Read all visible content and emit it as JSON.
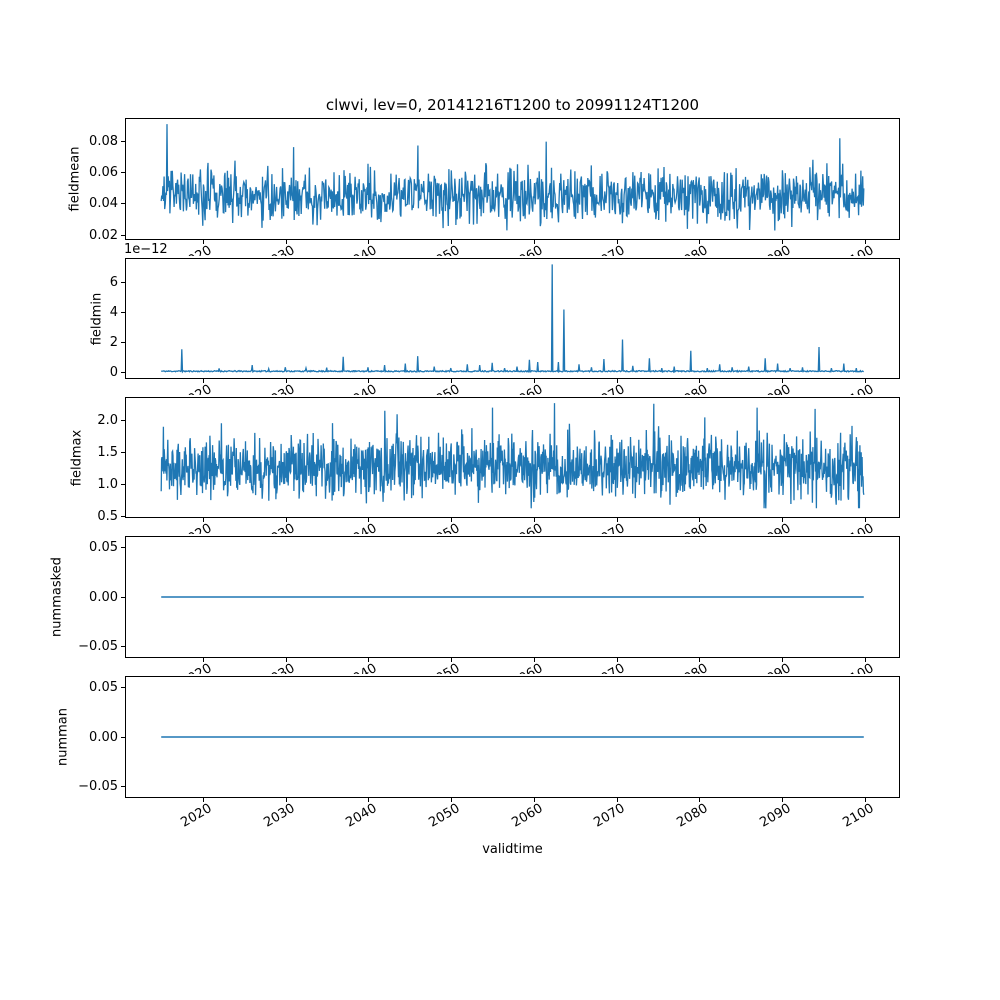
{
  "figure": {
    "title": "clwvi, lev=0, 20141216T1200 to 20991124T1200",
    "xlabel": "validtime",
    "background": "#ffffff",
    "line_color": "#1f77b4",
    "axis_color": "#000000"
  },
  "x_axis": {
    "lim": [
      2010.71,
      2104.15
    ],
    "ticks": [
      2020,
      2030,
      2040,
      2050,
      2060,
      2070,
      2080,
      2090,
      2100
    ],
    "tick_labels": [
      "2020",
      "2030",
      "2040",
      "2050",
      "2060",
      "2070",
      "2080",
      "2090",
      "2100"
    ],
    "tick_label_rotation_deg": 30,
    "data_start_year": 2014.96,
    "data_end_year": 2099.9
  },
  "chart_data": [
    {
      "type": "line",
      "name": "fieldmean",
      "ylabel": "fieldmean",
      "yticks": [
        0.02,
        0.04,
        0.06,
        0.08
      ],
      "ytick_labels": [
        "0.02",
        "0.04",
        "0.06",
        "0.08"
      ],
      "ylim": [
        0.0175,
        0.0945
      ],
      "offset_text": "",
      "series": {
        "kind": "noise",
        "n": 1200,
        "seed": 7,
        "mean": 0.0455,
        "sigma": 0.0085,
        "min": 0.0215,
        "max": 0.0915,
        "spike_prob": 0.02,
        "spike_scale": 0.013,
        "dip_scale": 0.007,
        "peaks": [
          [
            2015.7,
            0.0912
          ],
          [
            2061.5,
            0.08
          ],
          [
            2097.0,
            0.0822
          ],
          [
            2046.0,
            0.0775
          ],
          [
            2031.0,
            0.0765
          ]
        ]
      }
    },
    {
      "type": "line",
      "name": "fieldmin",
      "ylabel": "fieldmin",
      "yticks": [
        0,
        2,
        4,
        6
      ],
      "ytick_labels": [
        "0",
        "2",
        "4",
        "6"
      ],
      "ylim": [
        -0.36,
        7.56
      ],
      "offset_text": "1e−12",
      "value_scale_note": "values in 1e-12 units",
      "series": {
        "kind": "baseline_spikes",
        "n": 1020,
        "seed": 11,
        "baseline": 0.05,
        "jitter": 0.08,
        "spikes": [
          [
            2017.5,
            1.55
          ],
          [
            2022,
            0.28
          ],
          [
            2026,
            0.5
          ],
          [
            2028,
            0.25
          ],
          [
            2030,
            0.35
          ],
          [
            2032.5,
            0.3
          ],
          [
            2035,
            0.33
          ],
          [
            2037,
            1.05
          ],
          [
            2040,
            0.35
          ],
          [
            2042,
            0.5
          ],
          [
            2044.5,
            0.6
          ],
          [
            2046,
            1.1
          ],
          [
            2048,
            0.4
          ],
          [
            2050,
            0.3
          ],
          [
            2052,
            0.55
          ],
          [
            2053.5,
            0.5
          ],
          [
            2055,
            0.65
          ],
          [
            2056.5,
            0.3
          ],
          [
            2058,
            0.4
          ],
          [
            2059.5,
            0.85
          ],
          [
            2060.5,
            0.7
          ],
          [
            2062.2,
            7.2
          ],
          [
            2063,
            0.7
          ],
          [
            2063.6,
            4.2
          ],
          [
            2065.5,
            0.55
          ],
          [
            2067,
            0.35
          ],
          [
            2068.5,
            0.9
          ],
          [
            2070.7,
            2.2
          ],
          [
            2072,
            0.45
          ],
          [
            2074,
            0.95
          ],
          [
            2075.5,
            0.3
          ],
          [
            2077,
            0.4
          ],
          [
            2079,
            1.45
          ],
          [
            2081,
            0.3
          ],
          [
            2082.5,
            0.55
          ],
          [
            2084,
            0.35
          ],
          [
            2086,
            0.4
          ],
          [
            2088,
            0.95
          ],
          [
            2089.5,
            0.6
          ],
          [
            2091,
            0.3
          ],
          [
            2092.5,
            0.35
          ],
          [
            2094.5,
            1.7
          ],
          [
            2096,
            0.3
          ],
          [
            2097.5,
            0.6
          ],
          [
            2099,
            0.3
          ]
        ]
      }
    },
    {
      "type": "line",
      "name": "fieldmax",
      "ylabel": "fieldmax",
      "yticks": [
        0.5,
        1.0,
        1.5,
        2.0
      ],
      "ytick_labels": [
        "0.5",
        "1.0",
        "1.5",
        "2.0"
      ],
      "ylim": [
        0.495,
        2.35
      ],
      "offset_text": "",
      "series": {
        "kind": "noise",
        "n": 1600,
        "seed": 23,
        "mean": 1.27,
        "sigma": 0.24,
        "min": 0.63,
        "max": 2.27,
        "spike_prob": 0.03,
        "spike_scale": 0.35,
        "dip_scale": 0.18,
        "peaks": [
          [
            2042,
            2.15
          ],
          [
            2055,
            2.2
          ],
          [
            2062.5,
            2.27
          ],
          [
            2074.5,
            2.26
          ],
          [
            2087,
            2.2
          ],
          [
            2094,
            2.18
          ]
        ]
      }
    },
    {
      "type": "line",
      "name": "nummasked",
      "ylabel": "nummasked",
      "yticks": [
        -0.05,
        0,
        0.05
      ],
      "ytick_labels": [
        "−0.05",
        "0.00",
        "0.05"
      ],
      "ylim": [
        -0.0605,
        0.0605
      ],
      "offset_text": "",
      "series": {
        "kind": "constant",
        "value": 0
      }
    },
    {
      "type": "line",
      "name": "numman",
      "ylabel": "numman",
      "yticks": [
        -0.05,
        0,
        0.05
      ],
      "ytick_labels": [
        "−0.05",
        "0.00",
        "0.05"
      ],
      "ylim": [
        -0.0605,
        0.0605
      ],
      "offset_text": "",
      "series": {
        "kind": "constant",
        "value": 0
      }
    }
  ]
}
